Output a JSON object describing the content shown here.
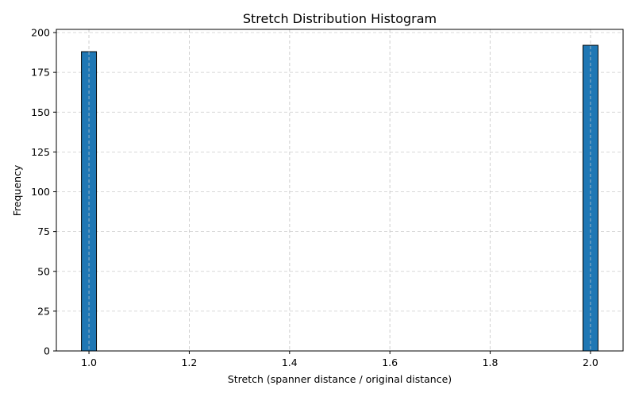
{
  "chart_data": {
    "type": "bar",
    "title": "Stretch Distribution Histogram",
    "xlabel": "Stretch (spanner distance / original distance)",
    "ylabel": "Frequency",
    "xlim": [
      0.935,
      2.065
    ],
    "ylim": [
      0,
      202
    ],
    "bins": [
      {
        "x_start": 0.985,
        "x_end": 1.015,
        "value": 188
      },
      {
        "x_start": 1.985,
        "x_end": 2.015,
        "value": 192
      }
    ],
    "x_ticks": [
      "1.0",
      "1.2",
      "1.4",
      "1.6",
      "1.8",
      "2.0"
    ],
    "y_ticks": [
      "0",
      "25",
      "50",
      "75",
      "100",
      "125",
      "150",
      "175",
      "200"
    ],
    "grid": true,
    "bar_color": "#1f77b4",
    "bar_edge_color": "#000000",
    "grid_color": "#cccccc"
  }
}
